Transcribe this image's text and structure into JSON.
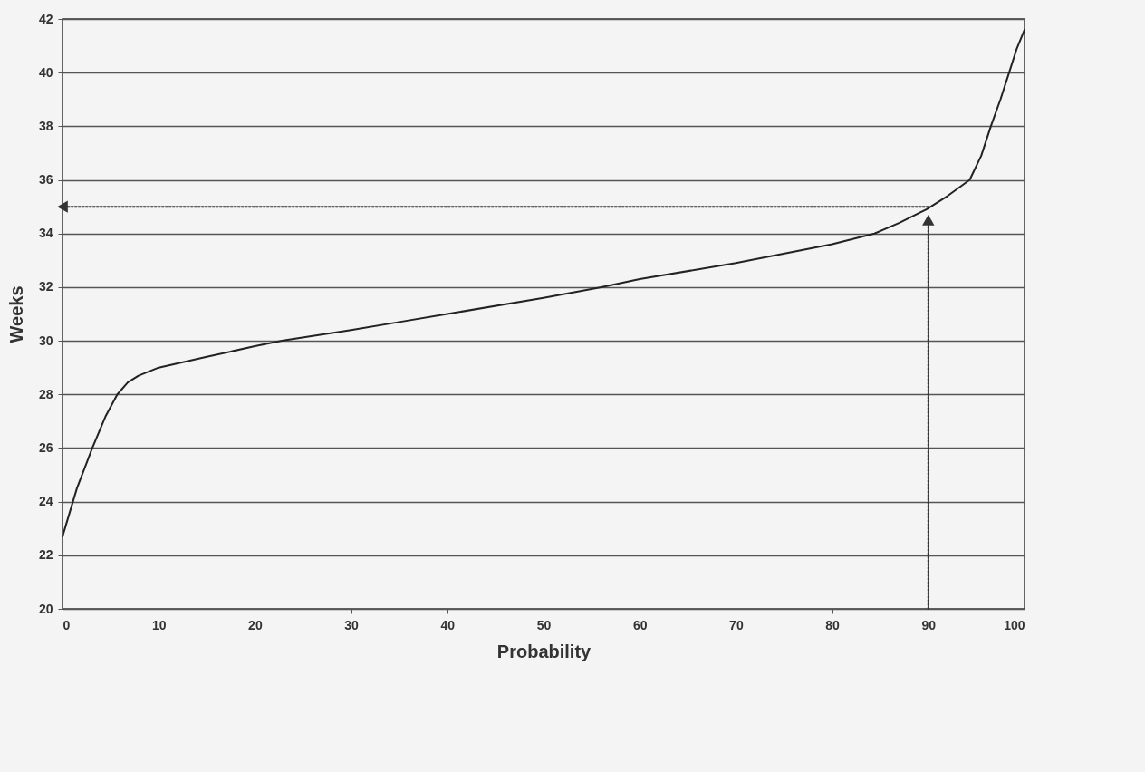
{
  "chart_data": {
    "type": "line",
    "xlabel": "Probability",
    "ylabel": "Weeks",
    "xlim": [
      0,
      100
    ],
    "ylim": [
      20,
      42
    ],
    "xticks": [
      0,
      10,
      20,
      30,
      40,
      50,
      60,
      70,
      80,
      90,
      100
    ],
    "yticks": [
      20,
      22,
      24,
      26,
      28,
      30,
      32,
      34,
      36,
      38,
      40,
      42
    ],
    "grid": "y",
    "series": [
      {
        "color": "#222222",
        "line_style": "solid",
        "x": [
          0,
          1.5,
          3.1,
          4.5,
          5.7,
          6.8,
          7.9,
          10,
          15,
          20,
          22.8,
          30,
          35,
          40,
          50,
          56,
          60,
          70,
          80,
          84.4,
          87,
          89.8,
          92,
          94.3,
          95.5,
          96.5,
          97.5,
          98.4,
          99.2,
          100
        ],
        "values": [
          22.7,
          24.5,
          26,
          27.2,
          28,
          28.45,
          28.7,
          29,
          29.4,
          29.8,
          30,
          30.4,
          30.7,
          31,
          31.6,
          32,
          32.3,
          32.9,
          33.6,
          34,
          34.4,
          34.9,
          35.4,
          36,
          36.9,
          38,
          39,
          40,
          40.9,
          41.6
        ]
      },
      {
        "type": "line",
        "color": "#333333",
        "line_style": "dotted",
        "x": [
          90,
          90
        ],
        "values": [
          20,
          34.5
        ]
      },
      {
        "type": "line",
        "color": "#333333",
        "line_style": "dotted",
        "x": [
          90,
          0
        ],
        "values": [
          35,
          35
        ]
      }
    ]
  }
}
